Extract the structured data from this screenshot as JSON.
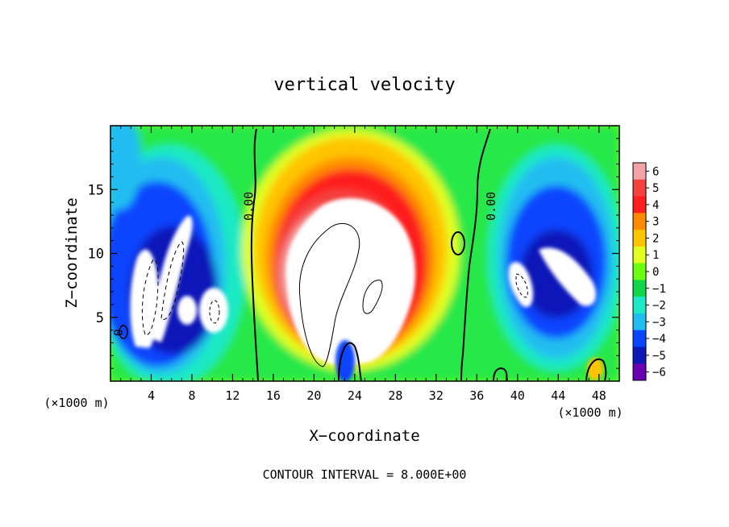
{
  "chart_data": {
    "type": "heatmap",
    "title": "vertical velocity",
    "xlabel": "X−coordinate",
    "ylabel": "Z−coordinate",
    "x_unit_left": "(×1000 m)",
    "x_unit_right": "(×1000 m)",
    "footer": "CONTOUR INTERVAL = 8.000E+00",
    "xlim": [
      0,
      50
    ],
    "ylim": [
      0,
      20
    ],
    "x_ticks": [
      4,
      8,
      12,
      16,
      20,
      24,
      28,
      32,
      36,
      40,
      44,
      48
    ],
    "y_ticks": [
      5,
      10,
      15
    ],
    "contour_labels": [
      {
        "text": "0.00",
        "x": 14.0,
        "z": 13.7
      },
      {
        "text": "0.00",
        "x": 37.8,
        "z": 13.7
      },
      {
        "text": "0",
        "x": 1.2,
        "z": 3.8
      }
    ],
    "colorbar": {
      "levels": [
        "6",
        "5",
        "4",
        "3",
        "2",
        "1",
        "0",
        "−1",
        "−2",
        "−3",
        "−4",
        "−5",
        "−6"
      ],
      "colors": [
        "#f4a3a6",
        "#f3433f",
        "#ff1f1f",
        "#ff8c00",
        "#ffc400",
        "#e1ff22",
        "#6cff12",
        "#12d74b",
        "#1ee9c4",
        "#22bdf0",
        "#0a45ff",
        "#0b19b8",
        "#6a00b3"
      ]
    },
    "grid": false,
    "legend": "right"
  }
}
